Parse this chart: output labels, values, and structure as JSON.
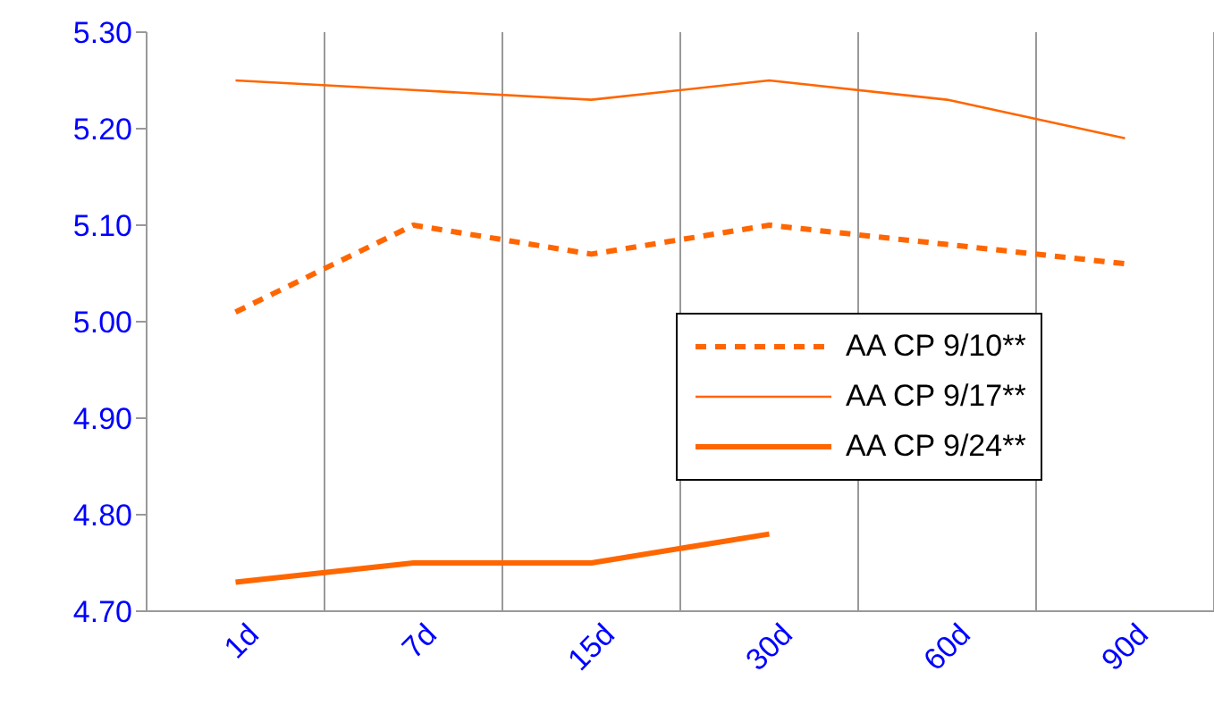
{
  "chart_data": {
    "type": "line",
    "categories": [
      "1d",
      "7d",
      "15d",
      "30d",
      "60d",
      "90d"
    ],
    "ylim": [
      4.7,
      5.3
    ],
    "yticks": [
      {
        "value": 4.7,
        "label": "4.70"
      },
      {
        "value": 4.8,
        "label": "4.80"
      },
      {
        "value": 4.9,
        "label": "4.90"
      },
      {
        "value": 5.0,
        "label": "5.00"
      },
      {
        "value": 5.1,
        "label": "5.10"
      },
      {
        "value": 5.2,
        "label": "5.20"
      },
      {
        "value": 5.3,
        "label": "5.30"
      }
    ],
    "grid": "x",
    "legend": "right",
    "marker": "none",
    "series": [
      {
        "name": "AA CP 9/10**",
        "color": "#ff6600",
        "line_style": "dashed",
        "values": [
          5.01,
          5.1,
          5.07,
          5.1,
          5.08,
          5.06
        ]
      },
      {
        "name": "AA CP 9/17**",
        "color": "#ff6600",
        "line_style": "solid",
        "values": [
          5.25,
          5.24,
          5.23,
          5.25,
          5.23,
          5.19
        ]
      },
      {
        "name": "AA CP 9/24**",
        "color": "#ff6600",
        "line_style": "solid",
        "values": [
          4.73,
          4.75,
          4.75,
          4.78,
          null,
          null
        ]
      }
    ]
  }
}
